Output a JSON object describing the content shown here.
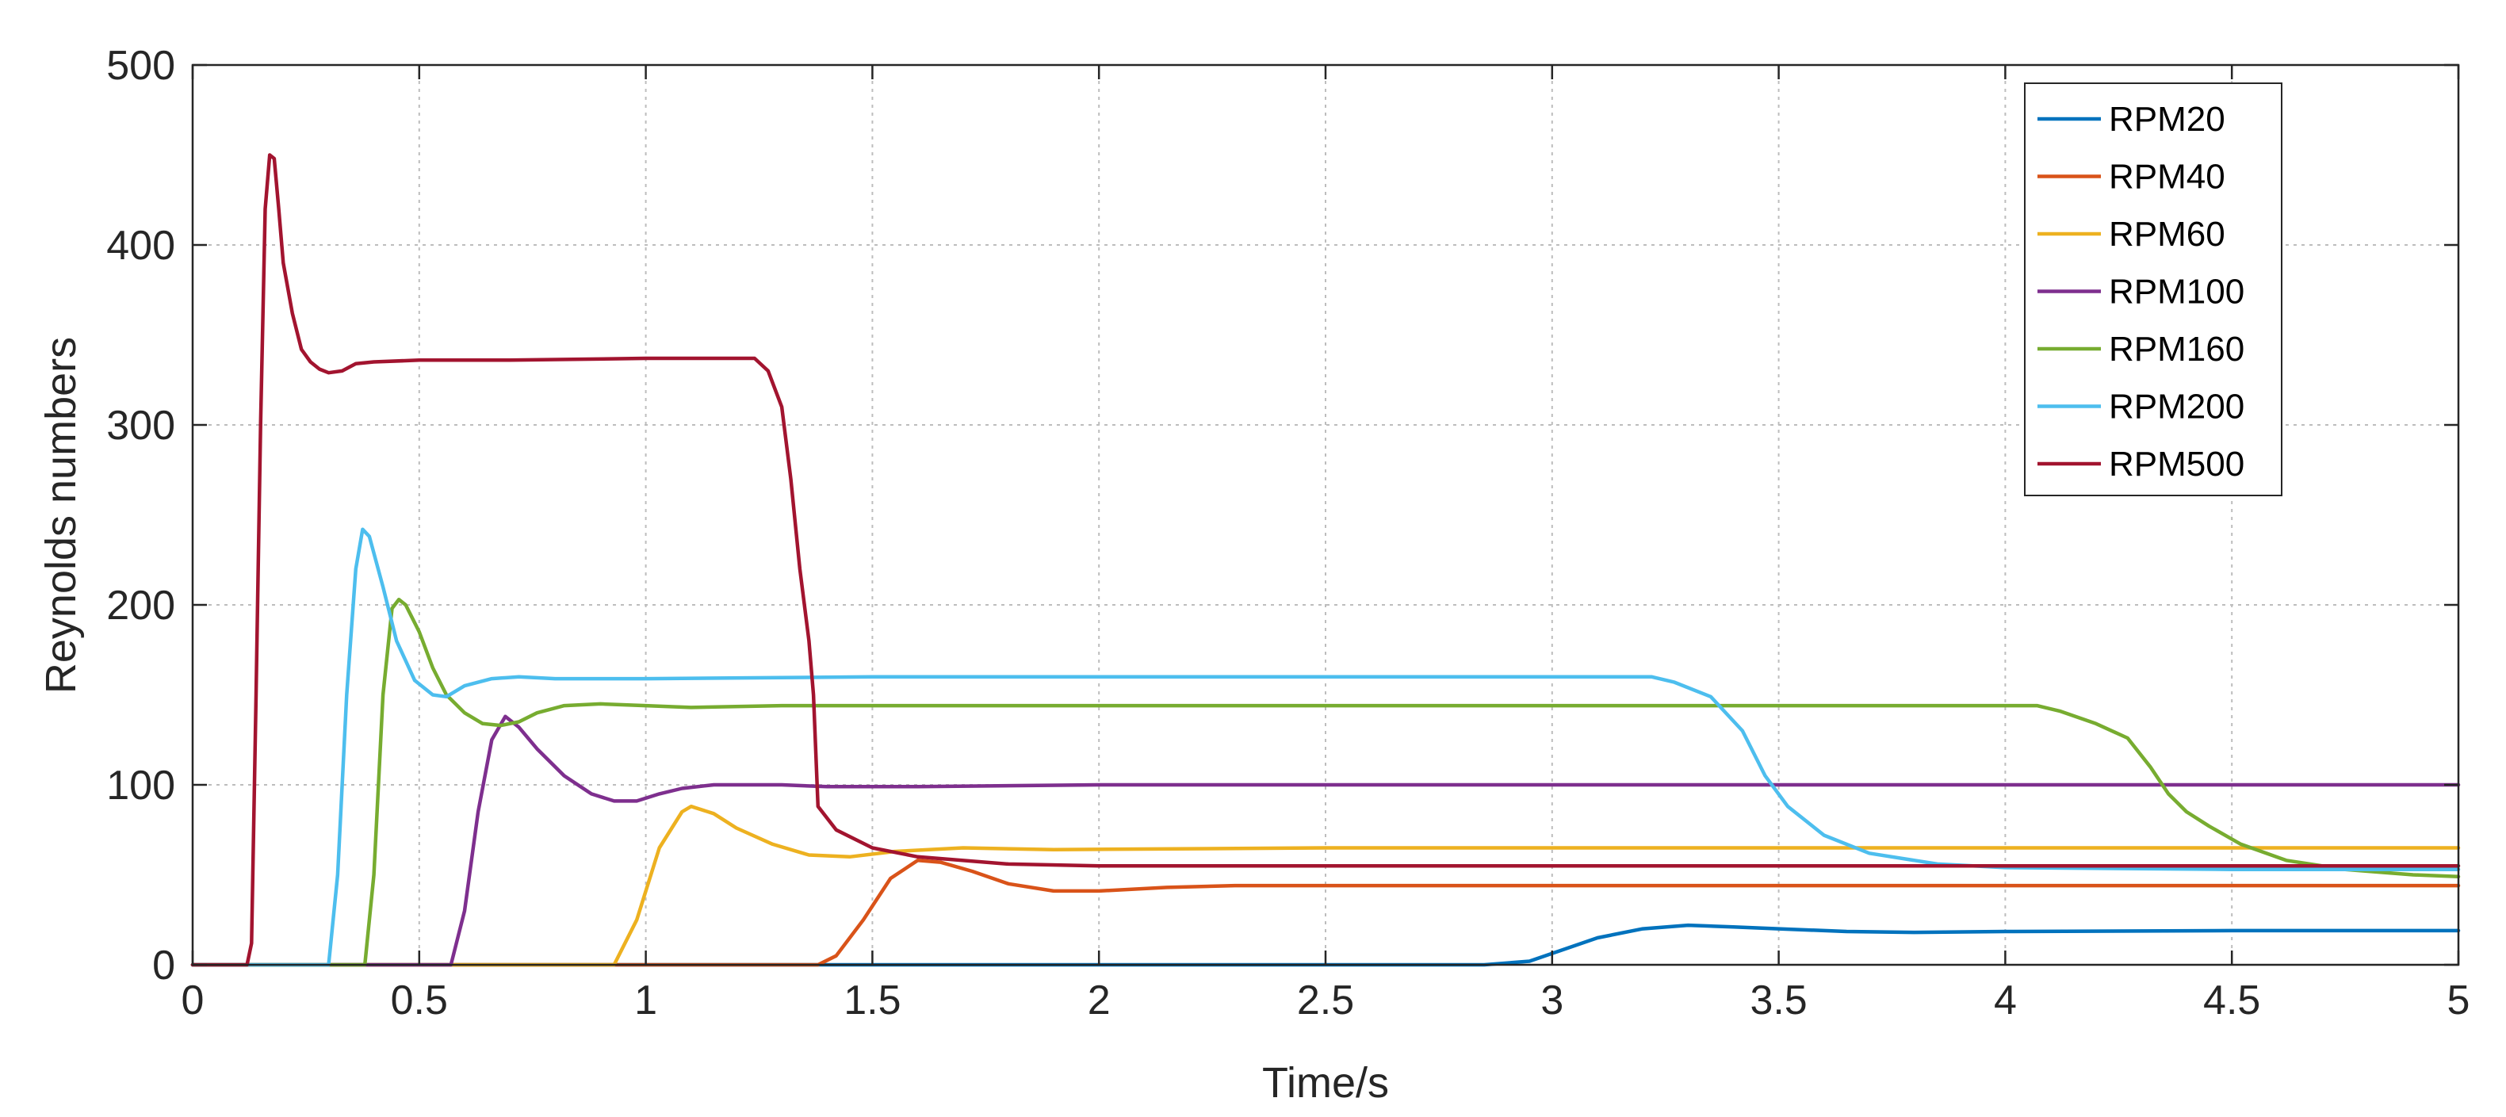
{
  "chart_data": {
    "type": "line",
    "xlabel": "Time/s",
    "ylabel": "Reynolds numbers",
    "xlim": [
      0,
      5
    ],
    "ylim": [
      0,
      500
    ],
    "xticks": [
      0,
      0.5,
      1,
      1.5,
      2,
      2.5,
      3,
      3.5,
      4,
      4.5,
      5
    ],
    "xtick_labels": [
      "0",
      "0.5",
      "1",
      "1.5",
      "2",
      "2.5",
      "3",
      "3.5",
      "4",
      "4.5",
      "5"
    ],
    "yticks": [
      0,
      100,
      200,
      300,
      400,
      500
    ],
    "ytick_labels": [
      "0",
      "100",
      "200",
      "300",
      "400",
      "500"
    ],
    "grid": true,
    "legend_position": "top-right",
    "series": [
      {
        "name": "RPM20",
        "color": "#0072BD",
        "points": [
          [
            0,
            0
          ],
          [
            2.85,
            0
          ],
          [
            2.95,
            2
          ],
          [
            3.02,
            8
          ],
          [
            3.1,
            15
          ],
          [
            3.2,
            20
          ],
          [
            3.3,
            22
          ],
          [
            3.4,
            21
          ],
          [
            3.5,
            20
          ],
          [
            3.65,
            18.5
          ],
          [
            3.8,
            18
          ],
          [
            4.0,
            18.5
          ],
          [
            4.5,
            19
          ],
          [
            5,
            19
          ]
        ]
      },
      {
        "name": "RPM40",
        "color": "#D95319",
        "points": [
          [
            0,
            0
          ],
          [
            1.38,
            0
          ],
          [
            1.42,
            5
          ],
          [
            1.48,
            25
          ],
          [
            1.54,
            48
          ],
          [
            1.6,
            58
          ],
          [
            1.65,
            57
          ],
          [
            1.72,
            52
          ],
          [
            1.8,
            45
          ],
          [
            1.9,
            41
          ],
          [
            2.0,
            41
          ],
          [
            2.15,
            43
          ],
          [
            2.3,
            44
          ],
          [
            2.6,
            44
          ],
          [
            3,
            44
          ],
          [
            4,
            44
          ],
          [
            5,
            44
          ]
        ]
      },
      {
        "name": "RPM60",
        "color": "#EDB120",
        "points": [
          [
            0,
            0
          ],
          [
            0.93,
            0
          ],
          [
            0.98,
            25
          ],
          [
            1.03,
            65
          ],
          [
            1.08,
            85
          ],
          [
            1.1,
            88
          ],
          [
            1.15,
            84
          ],
          [
            1.2,
            76
          ],
          [
            1.28,
            67
          ],
          [
            1.36,
            61
          ],
          [
            1.45,
            60
          ],
          [
            1.55,
            63
          ],
          [
            1.7,
            65
          ],
          [
            1.9,
            64
          ],
          [
            2.5,
            65
          ],
          [
            3.5,
            65
          ],
          [
            5,
            65
          ]
        ]
      },
      {
        "name": "RPM100",
        "color": "#7E2F8E",
        "points": [
          [
            0,
            0
          ],
          [
            0.57,
            0
          ],
          [
            0.6,
            30
          ],
          [
            0.63,
            85
          ],
          [
            0.66,
            125
          ],
          [
            0.69,
            138
          ],
          [
            0.72,
            132
          ],
          [
            0.76,
            120
          ],
          [
            0.82,
            105
          ],
          [
            0.88,
            95
          ],
          [
            0.93,
            91
          ],
          [
            0.98,
            91
          ],
          [
            1.03,
            95
          ],
          [
            1.08,
            98
          ],
          [
            1.15,
            100
          ],
          [
            1.3,
            100
          ],
          [
            1.4,
            99
          ],
          [
            1.6,
            99
          ],
          [
            2,
            100
          ],
          [
            3,
            100
          ],
          [
            3.6,
            100
          ],
          [
            4,
            100
          ],
          [
            5,
            100
          ]
        ]
      },
      {
        "name": "RPM160",
        "color": "#77AC30",
        "points": [
          [
            0,
            0
          ],
          [
            0.38,
            0
          ],
          [
            0.4,
            50
          ],
          [
            0.42,
            150
          ],
          [
            0.44,
            198
          ],
          [
            0.455,
            203
          ],
          [
            0.47,
            200
          ],
          [
            0.5,
            185
          ],
          [
            0.53,
            165
          ],
          [
            0.56,
            150
          ],
          [
            0.6,
            140
          ],
          [
            0.64,
            134
          ],
          [
            0.68,
            133
          ],
          [
            0.72,
            135
          ],
          [
            0.76,
            140
          ],
          [
            0.82,
            144
          ],
          [
            0.9,
            145
          ],
          [
            1.0,
            144
          ],
          [
            1.1,
            143
          ],
          [
            1.3,
            144
          ],
          [
            2,
            144
          ],
          [
            3,
            144
          ],
          [
            3.5,
            144
          ],
          [
            4.07,
            144
          ],
          [
            4.12,
            141
          ],
          [
            4.2,
            134
          ],
          [
            4.27,
            126
          ],
          [
            4.32,
            110
          ],
          [
            4.36,
            95
          ],
          [
            4.4,
            85
          ],
          [
            4.45,
            77
          ],
          [
            4.52,
            67
          ],
          [
            4.62,
            58
          ],
          [
            4.75,
            53
          ],
          [
            4.9,
            50
          ],
          [
            5,
            49
          ]
        ]
      },
      {
        "name": "RPM200",
        "color": "#4DBEEE",
        "points": [
          [
            0,
            0
          ],
          [
            0.3,
            0
          ],
          [
            0.32,
            50
          ],
          [
            0.34,
            150
          ],
          [
            0.36,
            220
          ],
          [
            0.375,
            242
          ],
          [
            0.39,
            238
          ],
          [
            0.42,
            210
          ],
          [
            0.45,
            180
          ],
          [
            0.49,
            158
          ],
          [
            0.53,
            150
          ],
          [
            0.56,
            149
          ],
          [
            0.6,
            155
          ],
          [
            0.66,
            159
          ],
          [
            0.72,
            160
          ],
          [
            0.8,
            159
          ],
          [
            1.0,
            159
          ],
          [
            1.5,
            160
          ],
          [
            2,
            160
          ],
          [
            3,
            160
          ],
          [
            3.22,
            160
          ],
          [
            3.27,
            157
          ],
          [
            3.35,
            149
          ],
          [
            3.42,
            130
          ],
          [
            3.47,
            105
          ],
          [
            3.52,
            88
          ],
          [
            3.6,
            72
          ],
          [
            3.7,
            62
          ],
          [
            3.85,
            56
          ],
          [
            4.0,
            54
          ],
          [
            4.5,
            53
          ],
          [
            5,
            53
          ]
        ]
      },
      {
        "name": "RPM500",
        "color": "#A2142F",
        "points": [
          [
            0,
            0
          ],
          [
            0.12,
            0
          ],
          [
            0.13,
            12
          ],
          [
            0.14,
            150
          ],
          [
            0.15,
            300
          ],
          [
            0.16,
            420
          ],
          [
            0.17,
            450
          ],
          [
            0.18,
            448
          ],
          [
            0.19,
            420
          ],
          [
            0.2,
            390
          ],
          [
            0.22,
            362
          ],
          [
            0.24,
            342
          ],
          [
            0.26,
            335
          ],
          [
            0.28,
            331
          ],
          [
            0.3,
            329
          ],
          [
            0.33,
            330
          ],
          [
            0.36,
            334
          ],
          [
            0.4,
            335
          ],
          [
            0.5,
            336
          ],
          [
            0.7,
            336
          ],
          [
            1.0,
            337
          ],
          [
            1.24,
            337
          ],
          [
            1.27,
            330
          ],
          [
            1.3,
            310
          ],
          [
            1.32,
            270
          ],
          [
            1.34,
            220
          ],
          [
            1.36,
            180
          ],
          [
            1.37,
            150
          ],
          [
            1.38,
            88
          ],
          [
            1.42,
            75
          ],
          [
            1.5,
            65
          ],
          [
            1.6,
            60
          ],
          [
            1.8,
            56
          ],
          [
            2,
            55
          ],
          [
            3,
            55
          ],
          [
            4,
            55
          ],
          [
            5,
            55
          ]
        ]
      }
    ]
  }
}
